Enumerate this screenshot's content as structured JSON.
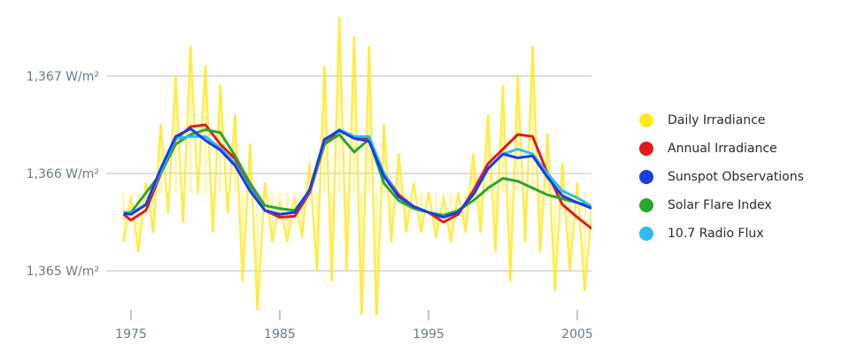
{
  "chart_data": {
    "type": "line",
    "title": "",
    "xlabel": "",
    "ylabel": "",
    "xlim": [
      1974.3,
      2006
    ],
    "ylim": [
      1364.55,
      1367.65
    ],
    "grid": true,
    "legend_position": "right",
    "x_ticks": [
      {
        "value": 1975,
        "label": "1975"
      },
      {
        "value": 1985,
        "label": "1985"
      },
      {
        "value": 1995,
        "label": "1995"
      },
      {
        "value": 2005,
        "label": "2005"
      }
    ],
    "y_ticks": [
      {
        "value": 1367,
        "label": "1,367 W/m²"
      },
      {
        "value": 1366,
        "label": "1,366 W/m²"
      },
      {
        "value": 1365,
        "label": "1,365 W/m²"
      }
    ],
    "series": [
      {
        "name": "Daily Irradiance",
        "color": "#ffe81a",
        "x_start": 1974.5,
        "x_step": 0.5,
        "values": [
          1365.3,
          1365.75,
          1365.2,
          1365.9,
          1365.4,
          1366.5,
          1365.6,
          1367.0,
          1365.5,
          1367.3,
          1365.8,
          1367.1,
          1365.4,
          1366.9,
          1365.6,
          1366.6,
          1364.9,
          1366.3,
          1364.6,
          1365.9,
          1365.3,
          1365.7,
          1365.3,
          1365.75,
          1365.35,
          1366.1,
          1365.0,
          1367.1,
          1364.9,
          1367.6,
          1365.0,
          1367.4,
          1364.5,
          1367.3,
          1364.5,
          1366.5,
          1365.3,
          1366.2,
          1365.4,
          1365.9,
          1365.4,
          1365.8,
          1365.35,
          1365.75,
          1365.3,
          1365.8,
          1365.4,
          1366.2,
          1365.4,
          1366.6,
          1365.2,
          1366.9,
          1364.9,
          1367.0,
          1365.3,
          1367.3,
          1365.2,
          1366.4,
          1364.8,
          1366.1,
          1365.0,
          1365.9,
          1364.8,
          1365.7
        ]
      },
      {
        "name": "Annual Irradiance",
        "color": "#e3191c",
        "x": [
          1974.5,
          1975,
          1976,
          1977,
          1978,
          1979,
          1980,
          1981,
          1982,
          1983,
          1984,
          1985,
          1986,
          1987,
          1988,
          1989,
          1990,
          1991,
          1992,
          1993,
          1994,
          1995,
          1996,
          1997,
          1998,
          1999,
          2000,
          2001,
          2002,
          2003,
          2004,
          2005,
          2006
        ],
        "values": [
          1365.58,
          1365.52,
          1365.62,
          1366.0,
          1366.35,
          1366.48,
          1366.5,
          1366.3,
          1366.15,
          1365.85,
          1365.62,
          1365.55,
          1365.56,
          1365.8,
          1366.3,
          1366.45,
          1366.38,
          1366.36,
          1366.0,
          1365.78,
          1365.66,
          1365.6,
          1365.5,
          1365.58,
          1365.82,
          1366.1,
          1366.25,
          1366.4,
          1366.38,
          1366.0,
          1365.68,
          1365.55,
          1365.43
        ]
      },
      {
        "name": "Solar Flare Index",
        "color": "#2ca52c",
        "x": [
          1974.5,
          1975,
          1976,
          1977,
          1978,
          1979,
          1980,
          1981,
          1982,
          1983,
          1984,
          1985,
          1986,
          1987,
          1988,
          1989,
          1990,
          1991,
          1992,
          1993,
          1994,
          1995,
          1996,
          1997,
          1998,
          1999,
          2000,
          2001,
          2002,
          2003,
          2004,
          2005,
          2006
        ],
        "values": [
          1365.6,
          1365.6,
          1365.8,
          1366.0,
          1366.3,
          1366.4,
          1366.45,
          1366.42,
          1366.18,
          1365.9,
          1365.67,
          1365.64,
          1365.62,
          1365.82,
          1366.3,
          1366.4,
          1366.22,
          1366.35,
          1365.9,
          1365.72,
          1365.64,
          1365.6,
          1365.57,
          1365.62,
          1365.72,
          1365.85,
          1365.95,
          1365.92,
          1365.85,
          1365.78,
          1365.74,
          1365.7,
          1365.66
        ]
      },
      {
        "name": "10.7 Radio Flux",
        "color": "#2bbcf5",
        "x": [
          1974.5,
          1975,
          1976,
          1977,
          1978,
          1979,
          1980,
          1981,
          1982,
          1983,
          1984,
          1985,
          1986,
          1987,
          1988,
          1989,
          1990,
          1991,
          1992,
          1993,
          1994,
          1995,
          1996,
          1997,
          1998,
          1999,
          2000,
          2001,
          2002,
          2003,
          2004,
          2005,
          2006
        ],
        "values": [
          1365.6,
          1365.59,
          1365.68,
          1366.02,
          1366.36,
          1366.38,
          1366.38,
          1366.26,
          1366.1,
          1365.84,
          1365.62,
          1365.58,
          1365.6,
          1365.82,
          1366.34,
          1366.45,
          1366.38,
          1366.38,
          1366.0,
          1365.76,
          1365.66,
          1365.6,
          1365.55,
          1365.6,
          1365.78,
          1366.05,
          1366.2,
          1366.25,
          1366.2,
          1366.0,
          1365.82,
          1365.75,
          1365.66
        ]
      },
      {
        "name": "Sunspot Observations",
        "color": "#1a3ce6",
        "x": [
          1974.5,
          1975,
          1976,
          1977,
          1978,
          1979,
          1980,
          1981,
          1982,
          1983,
          1984,
          1985,
          1986,
          1987,
          1988,
          1989,
          1990,
          1991,
          1992,
          1993,
          1994,
          1995,
          1996,
          1997,
          1998,
          1999,
          2000,
          2001,
          2002,
          2003,
          2004,
          2005,
          2006
        ],
        "values": [
          1365.59,
          1365.58,
          1365.68,
          1366.05,
          1366.38,
          1366.46,
          1366.34,
          1366.24,
          1366.08,
          1365.82,
          1365.62,
          1365.58,
          1365.6,
          1365.83,
          1366.35,
          1366.44,
          1366.36,
          1366.33,
          1365.97,
          1365.76,
          1365.66,
          1365.6,
          1365.55,
          1365.6,
          1365.78,
          1366.05,
          1366.2,
          1366.16,
          1366.18,
          1365.96,
          1365.77,
          1365.7,
          1365.64
        ]
      }
    ]
  },
  "legend": [
    {
      "label": "Daily Irradiance",
      "color": "#ffe81a"
    },
    {
      "label": "Annual Irradiance",
      "color": "#e3191c"
    },
    {
      "label": "Sunspot Observations",
      "color": "#1a3ce6"
    },
    {
      "label": "Solar Flare Index",
      "color": "#2ca52c"
    },
    {
      "label": "10.7 Radio Flux",
      "color": "#2bbcf5"
    }
  ]
}
